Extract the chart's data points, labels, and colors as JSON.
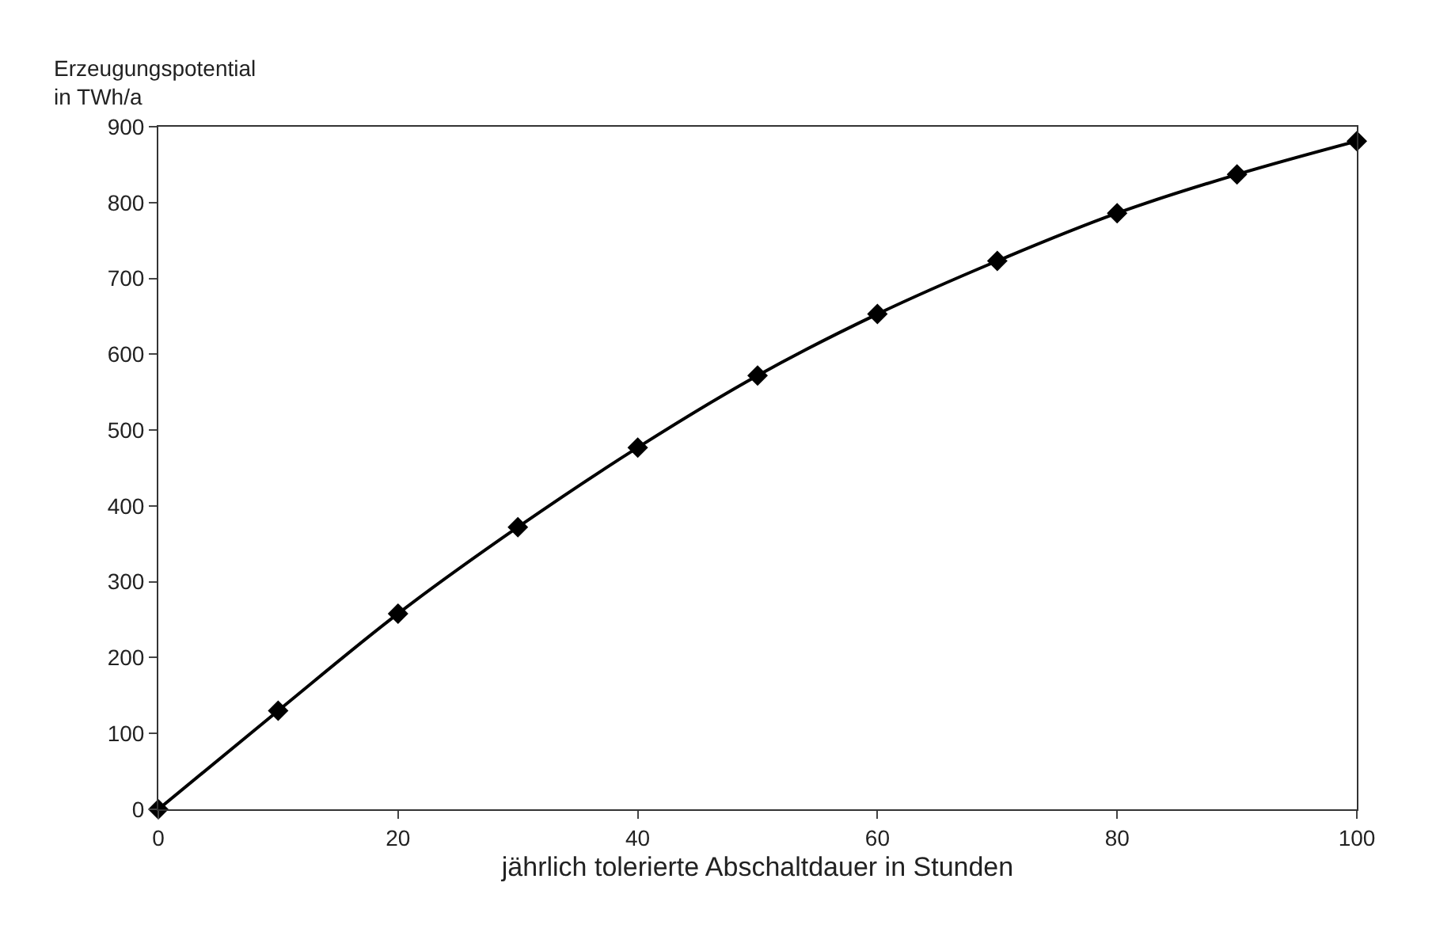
{
  "chart_data": {
    "type": "line",
    "ylabel": "Erzeugungspotential\nin TWh/a",
    "xlabel": "jährlich tolerierte Abschaltdauer in Stunden",
    "x": [
      0,
      10,
      20,
      30,
      40,
      50,
      60,
      70,
      80,
      90,
      100
    ],
    "series": [
      {
        "color": "#000000",
        "values": [
          0,
          130,
          258,
          372,
          477,
          572,
          653,
          723,
          786,
          837,
          881
        ]
      }
    ],
    "xlim": [
      0,
      100
    ],
    "ylim": [
      0,
      900
    ],
    "xticks": [
      0,
      20,
      40,
      60,
      80,
      100
    ],
    "yticks": [
      0,
      100,
      200,
      300,
      400,
      500,
      600,
      700,
      800,
      900
    ],
    "marker": "diamond",
    "line_style": "solid"
  }
}
